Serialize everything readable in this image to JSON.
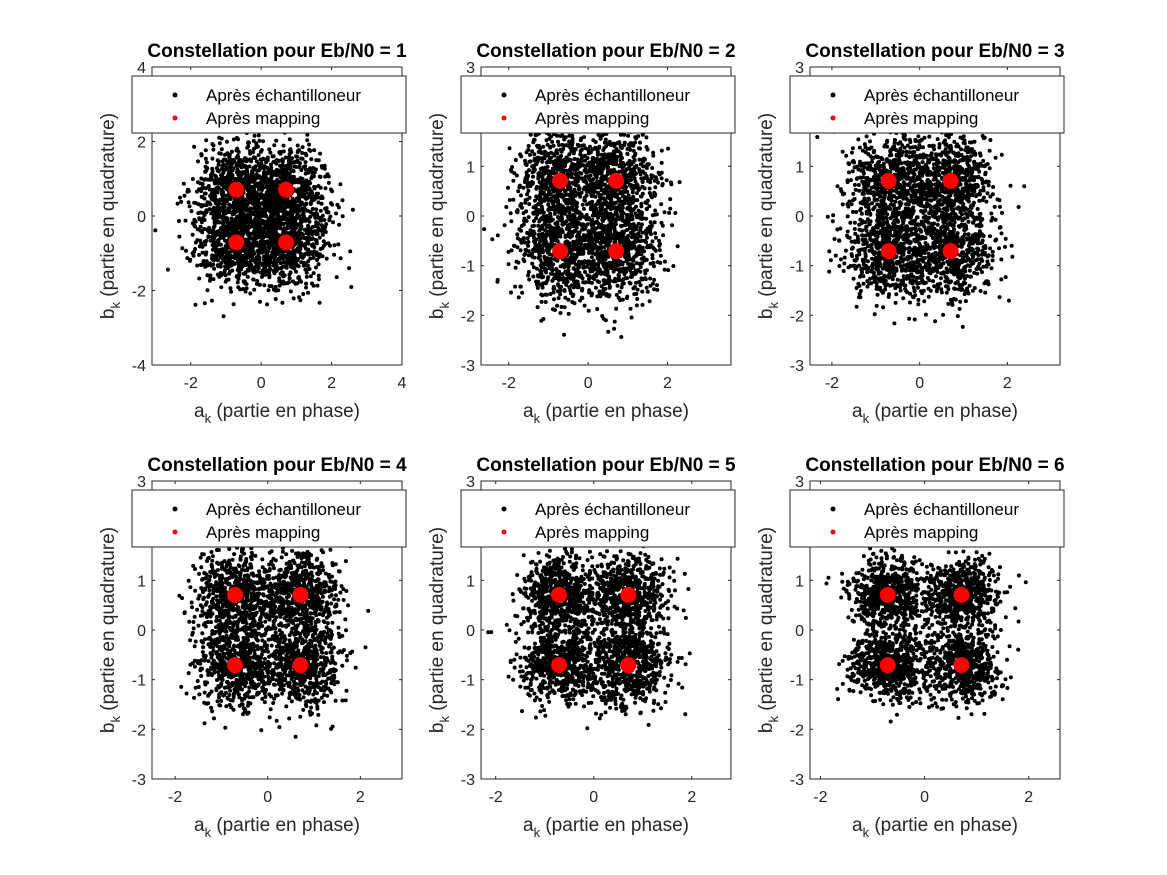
{
  "colors": {
    "received": "#000000",
    "mapping": "#ff0000",
    "axis": "#262626"
  },
  "legend": {
    "entries": [
      "Après échantilloneur",
      "Après mapping"
    ],
    "placement": "top"
  },
  "axes_text": {
    "xlabel_main": "a",
    "xlabel_sub": "k",
    "xlabel_rest": " (partie en phase)",
    "ylabel_main": "b",
    "ylabel_sub": "k",
    "ylabel_rest": " (partie en quadrature)"
  },
  "chart_data": [
    {
      "type": "scatter",
      "title": "Constellation pour Eb/N0 = 1",
      "xlim": [
        -3.1,
        4
      ],
      "ylim": [
        -4,
        4
      ],
      "xticks": [
        -2,
        0,
        2,
        4
      ],
      "yticks": [
        -4,
        -2,
        0,
        2,
        4
      ],
      "noise_sigma": 0.62,
      "mapping_points": [
        [
          -0.707,
          0.707
        ],
        [
          0.707,
          0.707
        ],
        [
          -0.707,
          -0.707
        ],
        [
          0.707,
          -0.707
        ]
      ],
      "series": [
        {
          "name": "Après échantilloneur"
        },
        {
          "name": "Après mapping"
        }
      ]
    },
    {
      "type": "scatter",
      "title": "Constellation pour Eb/N0 = 2",
      "xlim": [
        -2.7,
        3.6
      ],
      "ylim": [
        -3,
        3
      ],
      "xticks": [
        -2,
        0,
        2
      ],
      "yticks": [
        -3,
        -2,
        -1,
        0,
        1,
        2,
        3
      ],
      "noise_sigma": 0.55,
      "mapping_points": [
        [
          -0.707,
          0.707
        ],
        [
          0.707,
          0.707
        ],
        [
          -0.707,
          -0.707
        ],
        [
          0.707,
          -0.707
        ]
      ],
      "series": [
        {
          "name": "Après échantilloneur"
        },
        {
          "name": "Après mapping"
        }
      ]
    },
    {
      "type": "scatter",
      "title": "Constellation pour Eb/N0 = 3",
      "xlim": [
        -2.5,
        3.2
      ],
      "ylim": [
        -3,
        3
      ],
      "xticks": [
        -2,
        0,
        2
      ],
      "yticks": [
        -3,
        -2,
        -1,
        0,
        1,
        2,
        3
      ],
      "noise_sigma": 0.5,
      "mapping_points": [
        [
          -0.707,
          0.707
        ],
        [
          0.707,
          0.707
        ],
        [
          -0.707,
          -0.707
        ],
        [
          0.707,
          -0.707
        ]
      ],
      "series": [
        {
          "name": "Après échantilloneur"
        },
        {
          "name": "Après mapping"
        }
      ]
    },
    {
      "type": "scatter",
      "title": "Constellation pour Eb/N0 = 4",
      "xlim": [
        -2.5,
        2.9
      ],
      "ylim": [
        -3,
        3
      ],
      "xticks": [
        -2,
        0,
        2
      ],
      "yticks": [
        -3,
        -2,
        -1,
        0,
        1,
        2,
        3
      ],
      "noise_sigma": 0.44,
      "mapping_points": [
        [
          -0.707,
          0.707
        ],
        [
          0.707,
          0.707
        ],
        [
          -0.707,
          -0.707
        ],
        [
          0.707,
          -0.707
        ]
      ],
      "series": [
        {
          "name": "Après échantilloneur"
        },
        {
          "name": "Après mapping"
        }
      ]
    },
    {
      "type": "scatter",
      "title": "Constellation pour Eb/N0 = 5",
      "xlim": [
        -2.3,
        2.8
      ],
      "ylim": [
        -3,
        3
      ],
      "xticks": [
        -2,
        0,
        2
      ],
      "yticks": [
        -3,
        -2,
        -1,
        0,
        1,
        2,
        3
      ],
      "noise_sigma": 0.4,
      "mapping_points": [
        [
          -0.707,
          0.707
        ],
        [
          0.707,
          0.707
        ],
        [
          -0.707,
          -0.707
        ],
        [
          0.707,
          -0.707
        ]
      ],
      "series": [
        {
          "name": "Après échantilloneur"
        },
        {
          "name": "Après mapping"
        }
      ]
    },
    {
      "type": "scatter",
      "title": "Constellation pour Eb/N0 = 6",
      "xlim": [
        -2.2,
        2.6
      ],
      "ylim": [
        -3,
        3
      ],
      "xticks": [
        -2,
        0,
        2
      ],
      "yticks": [
        -3,
        -2,
        -1,
        0,
        1,
        2,
        3
      ],
      "noise_sigma": 0.36,
      "mapping_points": [
        [
          -0.707,
          0.707
        ],
        [
          0.707,
          0.707
        ],
        [
          -0.707,
          -0.707
        ],
        [
          0.707,
          -0.707
        ]
      ],
      "series": [
        {
          "name": "Après échantilloneur"
        },
        {
          "name": "Après mapping"
        }
      ]
    }
  ]
}
